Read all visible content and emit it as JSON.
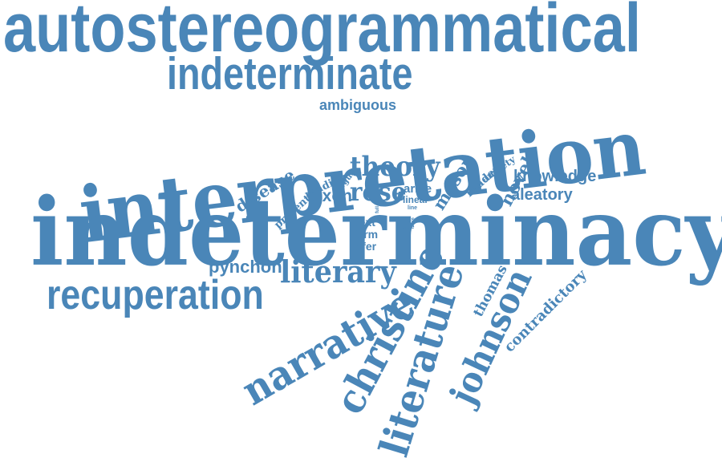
{
  "word_cloud": {
    "color": "#4a86b8",
    "words": {
      "autostereogrammatical": "autostereogrammatical",
      "indeterminate": "indeterminate",
      "ambiguous": "ambiguous",
      "interpretation": "interpretation",
      "theory": "theory",
      "disease": "disease",
      "present": "present",
      "reading": "reading",
      "argue": "argue",
      "dixon": "dixon",
      "rose": "rose",
      "arise": "arise",
      "linear": "linear",
      "line": "line",
      "full": "full",
      "mason": "mason",
      "reader": "reader",
      "anxiety": "anxiety",
      "novel": "novel",
      "knowledge": "knowledge",
      "aleatory": "aleatory",
      "indeterminacy": "indeterminacy",
      "text": "text",
      "form": "form",
      "offer": "offer",
      "loss": "loss",
      "type": "type",
      "pynchon": "pynchon",
      "literary": "literary",
      "recuperation": "recuperation",
      "narrative": "narrative",
      "christine": "christine",
      "literature": "literature",
      "thomas": "thomas",
      "johnson": "johnson",
      "contradictory": "contradictory"
    }
  }
}
